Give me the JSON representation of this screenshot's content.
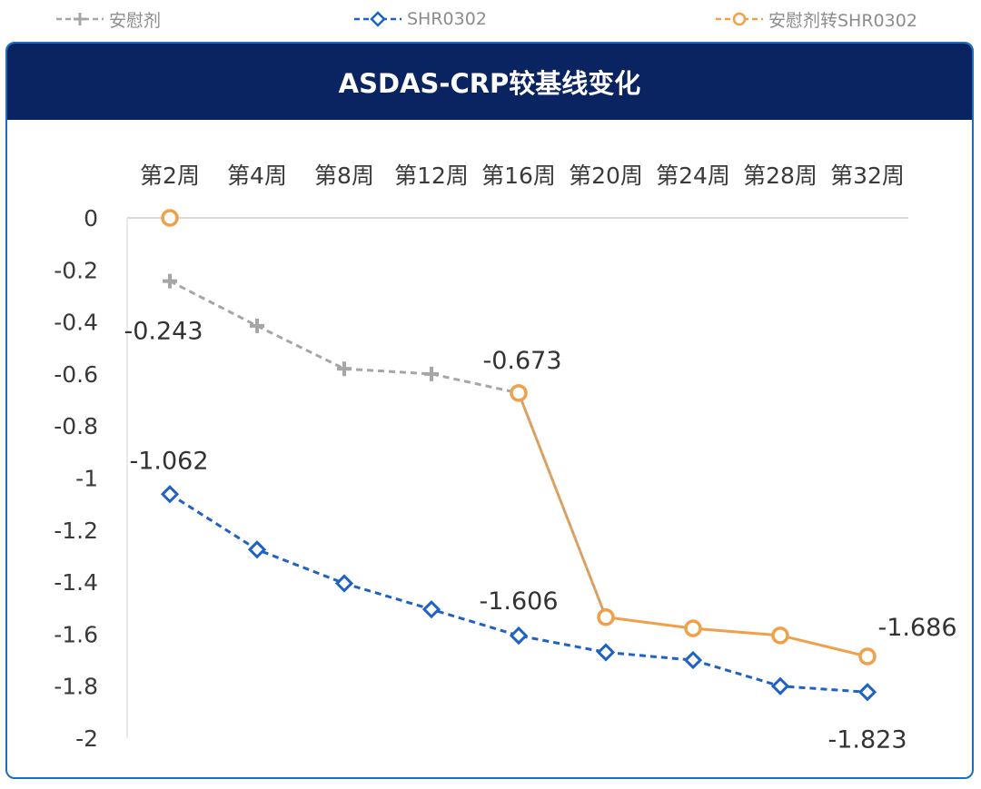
{
  "chart_data": {
    "type": "line",
    "title": "ASDAS-CRP较基线变化",
    "categories": [
      "第2周",
      "第4周",
      "第8周",
      "第12周",
      "第16周",
      "第20周",
      "第24周",
      "第28周",
      "第32周"
    ],
    "ylim": [
      -2,
      0
    ],
    "y_ticks": [
      "0",
      "-0.2",
      "-0.4",
      "-0.6",
      "-0.8",
      "-1",
      "-1.2",
      "-1.4",
      "-1.6",
      "-1.8",
      "-2"
    ],
    "x_axis_position": "top",
    "legend_position": "top",
    "grid": false,
    "series": [
      {
        "name": "安慰剂",
        "color": "#a6a6a6",
        "marker": "plus",
        "line_style": "dashed",
        "values": [
          -0.243,
          -0.415,
          -0.58,
          -0.6,
          -0.673,
          null,
          null,
          null,
          null
        ]
      },
      {
        "name": "SHR0302",
        "color": "#1f62c3",
        "marker": "diamond",
        "line_style": "dashed",
        "values": [
          -1.062,
          -1.275,
          -1.405,
          -1.505,
          -1.606,
          -1.67,
          -1.7,
          -1.8,
          -1.823
        ]
      },
      {
        "name": "安慰剂转SHR0302",
        "color": "#f0a04b",
        "marker": "circle",
        "line_style": "solid",
        "values": [
          0,
          null,
          null,
          null,
          -0.673,
          -1.535,
          -1.578,
          -1.605,
          -1.686
        ]
      }
    ],
    "data_labels": [
      {
        "text": "-0.243",
        "series": 0,
        "index": 0
      },
      {
        "text": "-0.673",
        "series": 2,
        "index": 4
      },
      {
        "text": "-1.062",
        "series": 1,
        "index": 0
      },
      {
        "text": "-1.606",
        "series": 1,
        "index": 4
      },
      {
        "text": "-1.686",
        "series": 2,
        "index": 8
      },
      {
        "text": "-1.823",
        "series": 1,
        "index": 8
      }
    ]
  }
}
